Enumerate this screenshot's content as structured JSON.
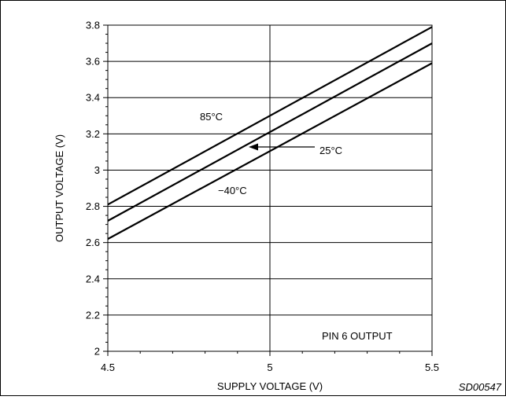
{
  "chart_data": {
    "type": "line",
    "xlabel": "SUPPLY VOLTAGE (V)",
    "ylabel": "OUTPUT VOLTAGE (V)",
    "xlim": [
      4.5,
      5.5
    ],
    "ylim": [
      2,
      3.8
    ],
    "x_ticks": [
      "4.5",
      "5",
      "5.5"
    ],
    "y_ticks": [
      "2",
      "2.2",
      "2.4",
      "2.6",
      "2.8",
      "3",
      "3.2",
      "3.4",
      "3.6",
      "3.8"
    ],
    "grid": "horizontal at each 0.2 V, vertical at 5 V",
    "series": [
      {
        "name": "85°C",
        "x": [
          4.5,
          5.5
        ],
        "y": [
          2.81,
          3.79
        ]
      },
      {
        "name": "25°C",
        "x": [
          4.5,
          5.5
        ],
        "y": [
          2.72,
          3.7
        ]
      },
      {
        "name": "−40°C",
        "x": [
          4.5,
          5.5
        ],
        "y": [
          2.62,
          3.59
        ]
      }
    ],
    "annotations": {
      "condition": "PIN 6 OUTPUT",
      "figure_code": "SD00547"
    }
  }
}
